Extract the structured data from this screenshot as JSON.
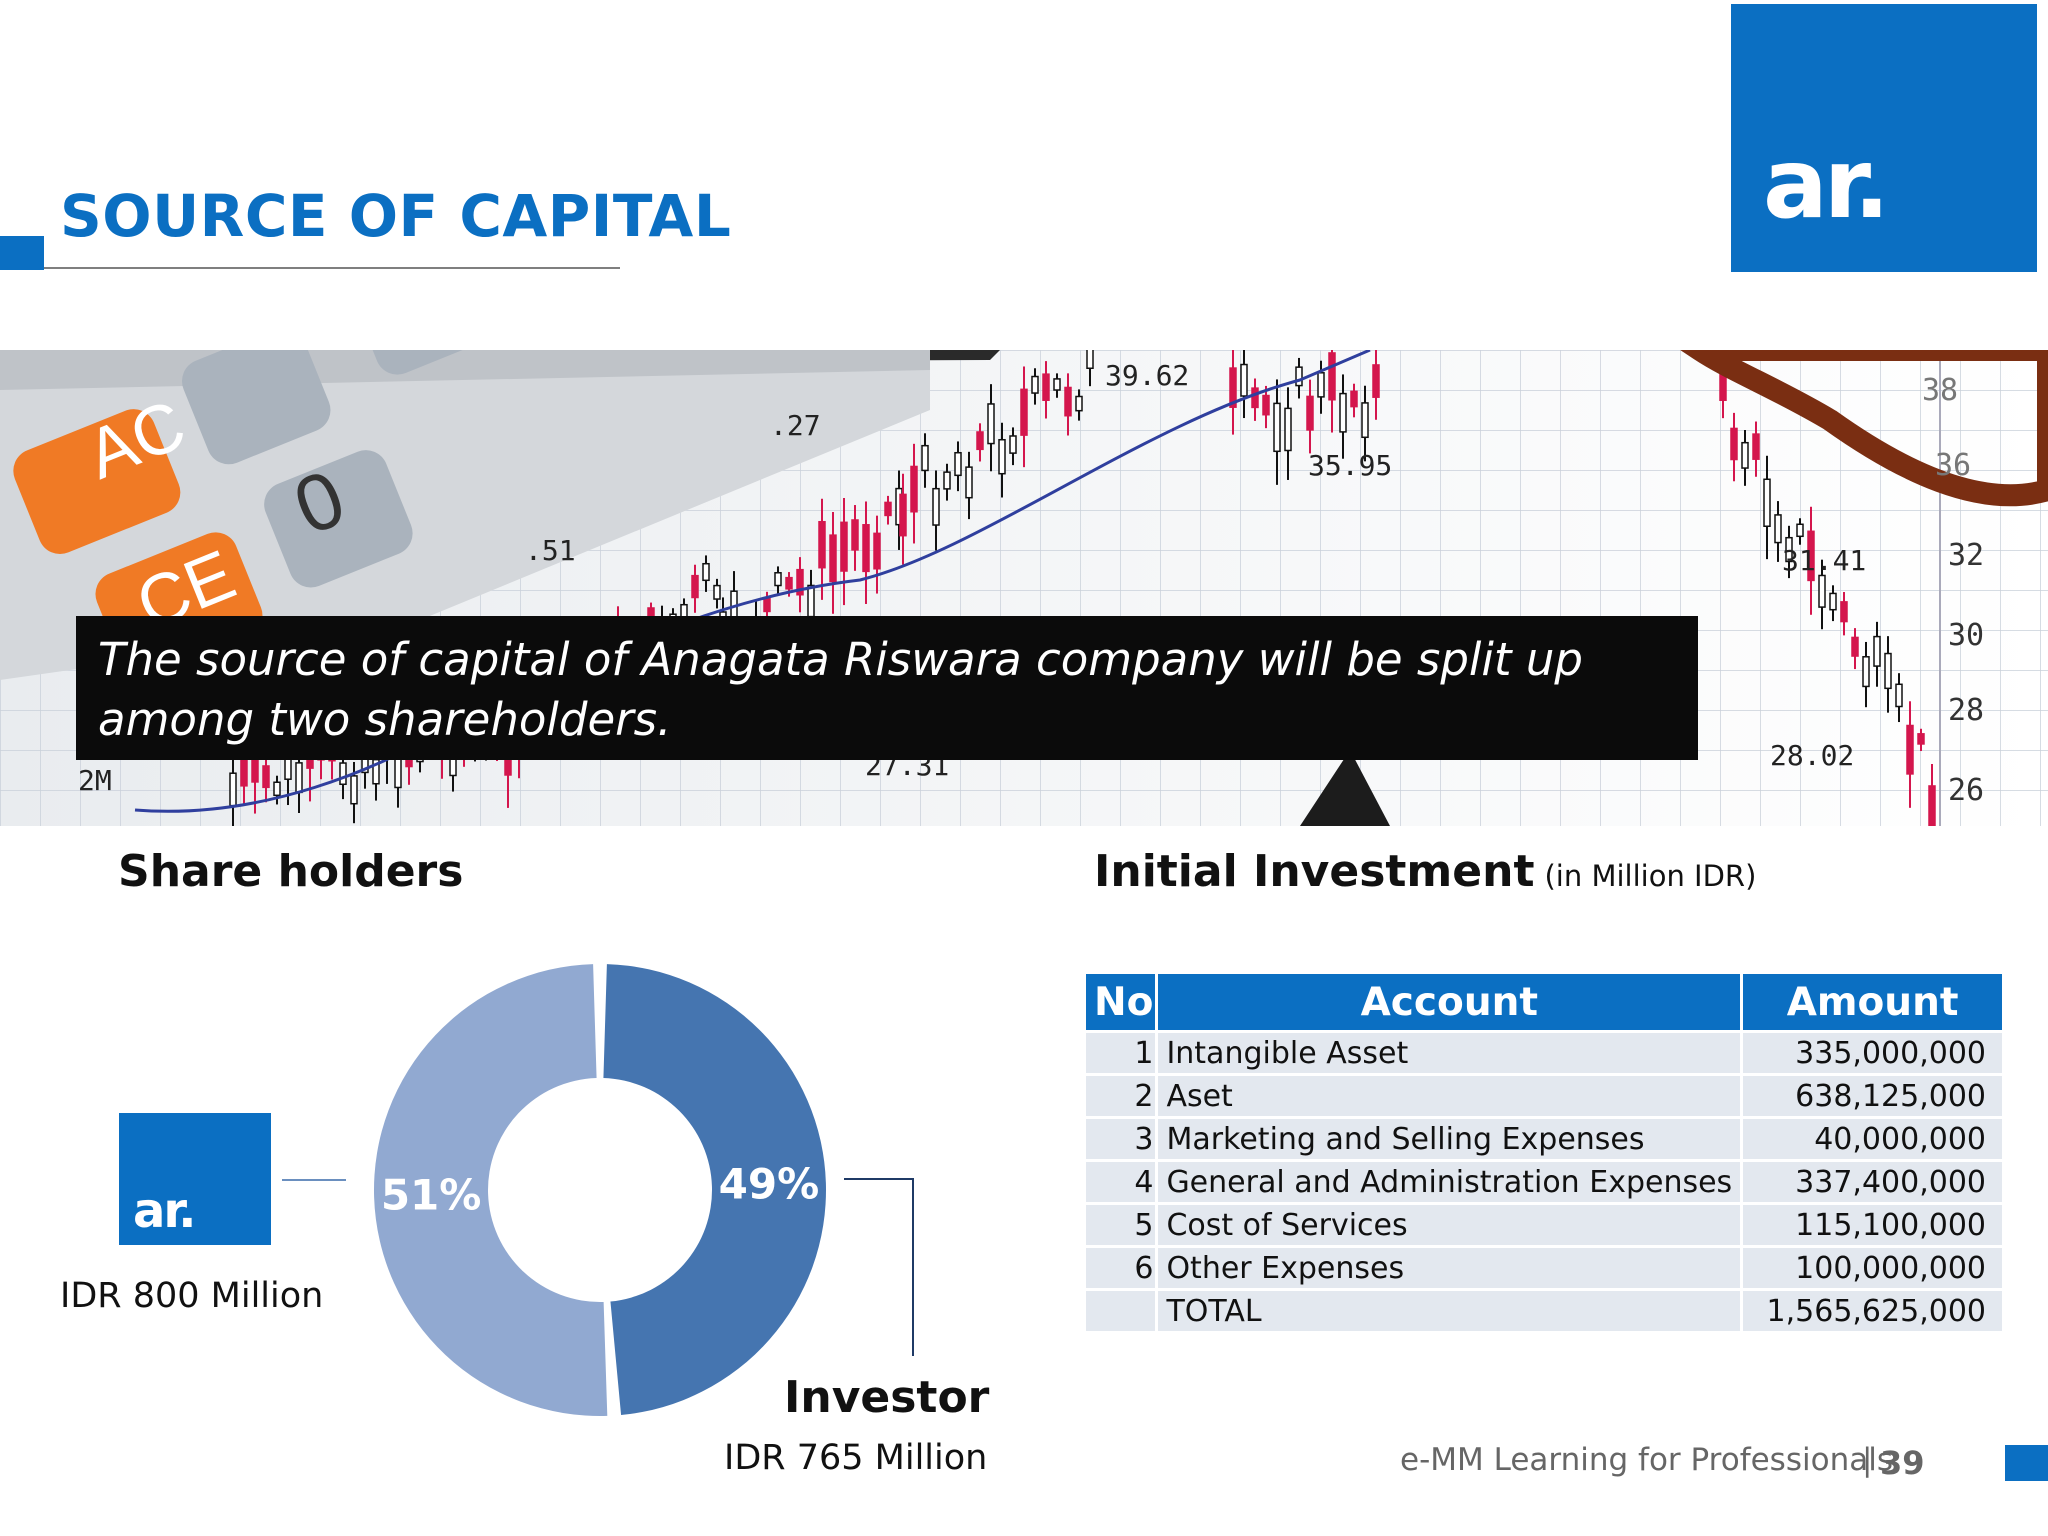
{
  "header": {
    "title": "SOURCE OF CAPITAL",
    "logo_text": "ar."
  },
  "banner": {
    "caption": "The source of capital of Anagata Riswara company will be split up among two shareholders.",
    "calculator_keys": [
      "AC",
      "CE",
      "0"
    ],
    "chart_labels": [
      "39.62",
      "35.95",
      ".27",
      ".51",
      "31.41",
      "28.02",
      "2M",
      "27.31"
    ],
    "axis_labels": [
      "38",
      "36",
      "32",
      "30",
      "28",
      "26"
    ],
    "colors": {
      "candle_down": "#d4164d",
      "trend_line": "#2f3f9e",
      "key_orange": "#f07a25"
    }
  },
  "shareholders": {
    "heading": "Share holders",
    "small_logo_text": "ar.",
    "left_amount": "IDR 800 Million",
    "investor_label": "Investor",
    "right_amount": "IDR 765 Million"
  },
  "chart_data": {
    "type": "pie",
    "variant": "donut",
    "categories": [
      "ar.",
      "Investor"
    ],
    "values": [
      51,
      49
    ],
    "labels": [
      "51%",
      "49%"
    ],
    "colors": [
      "#91a9d1",
      "#4575b0"
    ]
  },
  "investment": {
    "heading": "Initial Investment",
    "unit": "(in Million IDR)",
    "columns": [
      "No",
      "Account",
      "Amount"
    ],
    "rows": [
      {
        "no": "1",
        "account": "Intangible Asset",
        "amount": "335,000,000"
      },
      {
        "no": "2",
        "account": "Aset",
        "amount": "638,125,000"
      },
      {
        "no": "3",
        "account": "Marketing and Selling Expenses",
        "amount": "40,000,000"
      },
      {
        "no": "4",
        "account": "General and Administration Expenses",
        "amount": "337,400,000"
      },
      {
        "no": "5",
        "account": "Cost of Services",
        "amount": "115,100,000"
      },
      {
        "no": "6",
        "account": "Other Expenses",
        "amount": "100,000,000"
      },
      {
        "no": "",
        "account": "TOTAL",
        "amount": "1,565,625,000"
      }
    ]
  },
  "footer": {
    "text": "e-MM Learning for Professionals",
    "separator": "|",
    "page": "39"
  },
  "colors": {
    "brand": "#0b6fc2",
    "table_row": "#e3e8ef"
  }
}
